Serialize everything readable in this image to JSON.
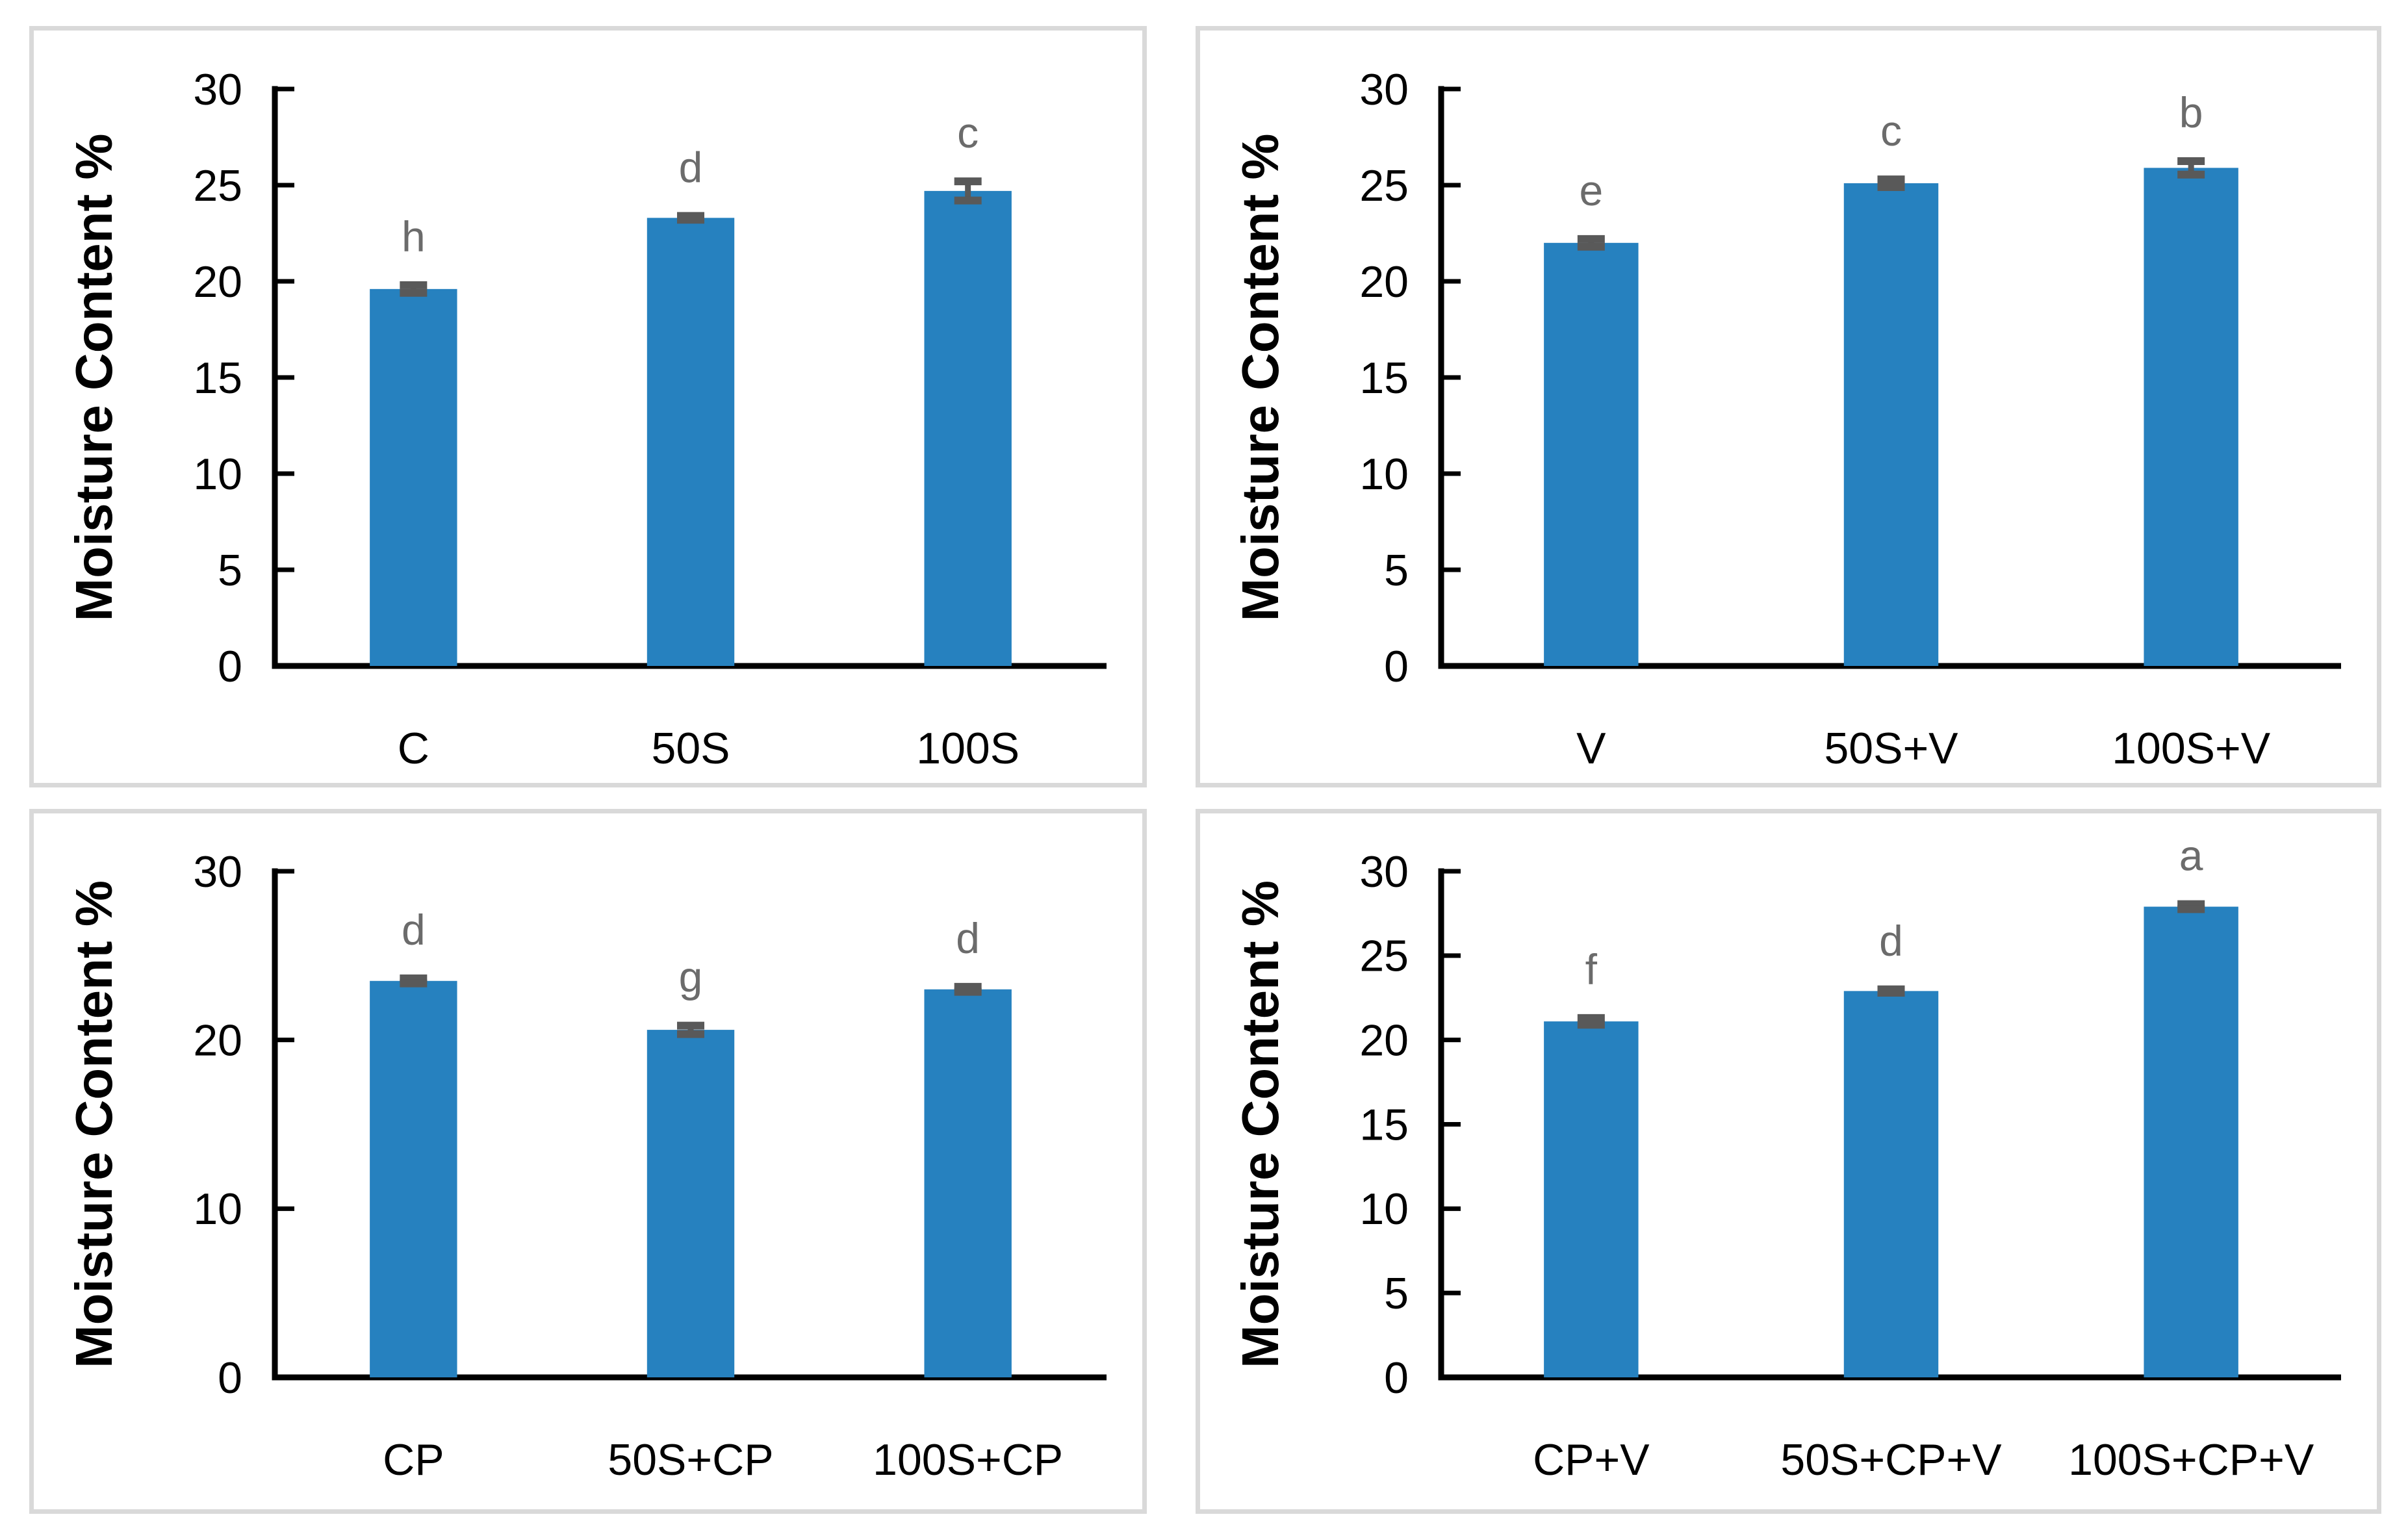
{
  "page": {
    "background": "#ffffff",
    "panel_border_color": "#d9d9d9"
  },
  "colors": {
    "bar": "#2681BF",
    "error_bar": "#595959",
    "sig_letter": "#6B6B6B",
    "axis": "#000000",
    "text": "#000000"
  },
  "chart_data": [
    {
      "type": "bar",
      "position": "top-left",
      "ylabel": "Moisture Content %",
      "xlabel": "",
      "ylim": [
        0,
        30
      ],
      "yticks": [
        0,
        5,
        10,
        15,
        20,
        25,
        30
      ],
      "grid": false,
      "legend": "none",
      "categories": [
        "C",
        "50S",
        "100S"
      ],
      "values": [
        19.6,
        23.3,
        24.7
      ],
      "errors": [
        0.2,
        0.1,
        0.5
      ],
      "sig_letters": [
        "h",
        "d",
        "c"
      ]
    },
    {
      "type": "bar",
      "position": "top-right",
      "ylabel": "Moisture Content %",
      "xlabel": "",
      "ylim": [
        0,
        30
      ],
      "yticks": [
        0,
        5,
        10,
        15,
        20,
        25,
        30
      ],
      "grid": false,
      "legend": "none",
      "categories": [
        "V",
        "50S+V",
        "100S+V"
      ],
      "values": [
        22.0,
        25.1,
        25.9
      ],
      "errors": [
        0.2,
        0.2,
        0.35
      ],
      "sig_letters": [
        "e",
        "c",
        "b"
      ]
    },
    {
      "type": "bar",
      "position": "bottom-left",
      "ylabel": "Moisture Content %",
      "xlabel": "",
      "ylim": [
        0,
        30
      ],
      "yticks": [
        0,
        10,
        20,
        30
      ],
      "grid": false,
      "legend": "none",
      "categories": [
        "CP",
        "50S+CP",
        "100S+CP"
      ],
      "values": [
        23.5,
        20.6,
        23.0
      ],
      "errors": [
        0.15,
        0.25,
        0.15
      ],
      "sig_letters": [
        "d",
        "g",
        "d"
      ]
    },
    {
      "type": "bar",
      "position": "bottom-right",
      "ylabel": "Moisture Content %",
      "xlabel": "",
      "ylim": [
        0,
        30
      ],
      "yticks": [
        0,
        5,
        10,
        15,
        20,
        25,
        30
      ],
      "grid": false,
      "legend": "none",
      "categories": [
        "CP+V",
        "50S+CP+V",
        "100S+CP+V"
      ],
      "values": [
        21.1,
        22.9,
        27.9
      ],
      "errors": [
        0.2,
        0.1,
        0.15
      ],
      "sig_letters": [
        "f",
        "d",
        "a"
      ]
    }
  ]
}
